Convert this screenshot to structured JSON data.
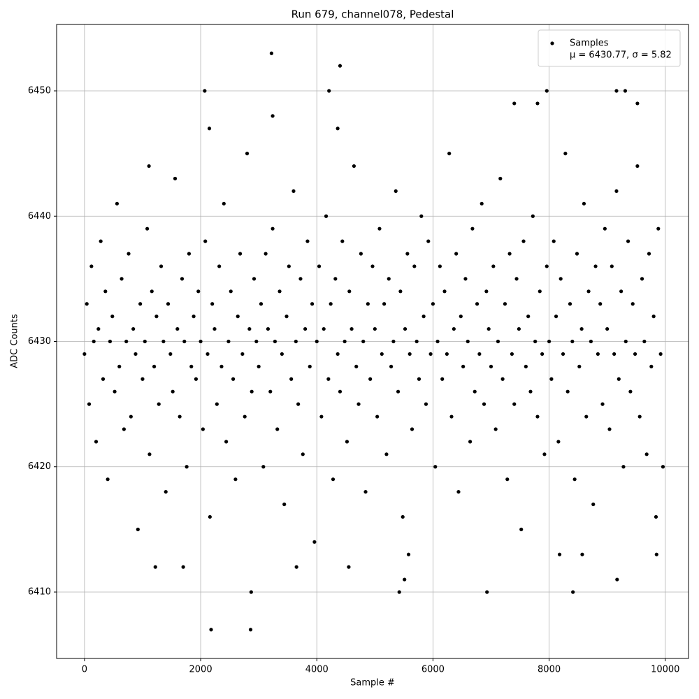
{
  "chart_data": {
    "type": "scatter",
    "title": "Run 679, channel078, Pedestal",
    "x_label": "Sample #",
    "y_label": "ADC Counts",
    "legend_note": "μ = 6430.77, σ = 5.82",
    "legend_position": "upper right",
    "grid": true,
    "xlim": [
      -480,
      10400
    ],
    "ylim": [
      6404.7,
      6455.3
    ],
    "xticks": [
      0,
      2000,
      4000,
      6000,
      8000,
      10000
    ],
    "yticks": [
      6410,
      6420,
      6430,
      6440,
      6450
    ],
    "series": [
      {
        "name": "Samples",
        "color": "#000000",
        "x": [
          0,
          40,
          80,
          120,
          160,
          200,
          240,
          280,
          320,
          360,
          400,
          440,
          480,
          520,
          560,
          600,
          640,
          680,
          720,
          760,
          800,
          840,
          880,
          920,
          960,
          1000,
          1040,
          1080,
          1120,
          1160,
          1200,
          1240,
          1280,
          1320,
          1360,
          1400,
          1440,
          1480,
          1520,
          1560,
          1600,
          1640,
          1680,
          1720,
          1760,
          1800,
          1840,
          1880,
          1920,
          1960,
          2000,
          2040,
          2080,
          2120,
          2160,
          2200,
          2240,
          2280,
          2320,
          2360,
          2400,
          2440,
          2480,
          2520,
          2560,
          2600,
          2640,
          2680,
          2720,
          2760,
          2800,
          2840,
          2880,
          2920,
          2960,
          3000,
          3040,
          3080,
          3120,
          3160,
          3200,
          3240,
          3280,
          3320,
          3360,
          3400,
          3440,
          3480,
          3520,
          3560,
          3600,
          3640,
          3680,
          3720,
          3760,
          3800,
          3840,
          3880,
          3920,
          3960,
          4000,
          4040,
          4080,
          4120,
          4160,
          4200,
          4240,
          4280,
          4320,
          4360,
          4400,
          4440,
          4480,
          4520,
          4560,
          4600,
          4640,
          4680,
          4720,
          4760,
          4800,
          4840,
          4880,
          4920,
          4960,
          5000,
          5040,
          5080,
          5120,
          5160,
          5200,
          5240,
          5280,
          5320,
          5360,
          5400,
          5440,
          5480,
          5520,
          5560,
          5600,
          5640,
          5680,
          5720,
          5760,
          5800,
          5840,
          5880,
          5920,
          5960,
          6000,
          6040,
          6080,
          6120,
          6160,
          6200,
          6240,
          6280,
          6320,
          6360,
          6400,
          6440,
          6480,
          6520,
          6560,
          6600,
          6640,
          6680,
          6720,
          6760,
          6800,
          6840,
          6880,
          6920,
          6960,
          7000,
          7040,
          7080,
          7120,
          7160,
          7200,
          7240,
          7280,
          7320,
          7360,
          7400,
          7440,
          7480,
          7520,
          7560,
          7600,
          7640,
          7680,
          7720,
          7760,
          7800,
          7840,
          7880,
          7920,
          7960,
          8000,
          8040,
          8080,
          8120,
          8160,
          8200,
          8240,
          8280,
          8320,
          8360,
          8400,
          8440,
          8480,
          8520,
          8560,
          8600,
          8640,
          8680,
          8720,
          8760,
          8800,
          8840,
          8880,
          8920,
          8960,
          9000,
          9040,
          9080,
          9120,
          9160,
          9200,
          9240,
          9280,
          9320,
          9360,
          9400,
          9440,
          9480,
          9520,
          9560,
          9600,
          9640,
          9680,
          9720,
          9760,
          9800,
          9840,
          9880,
          9920,
          9960,
          2070,
          3220,
          3240,
          4210,
          4400,
          2180,
          2860,
          2870,
          5420,
          6930,
          8410,
          9170,
          5510,
          4550,
          1220,
          1700,
          3650,
          7400,
          7800,
          7960,
          9160,
          9310,
          9520,
          2150,
          4360,
          1110,
          5580,
          8180,
          8570,
          9850
        ],
        "y": [
          6429,
          6433,
          6425,
          6436,
          6430,
          6422,
          6431,
          6438,
          6427,
          6434,
          6419,
          6430,
          6432,
          6426,
          6441,
          6428,
          6435,
          6423,
          6430,
          6437,
          6424,
          6431,
          6429,
          6415,
          6433,
          6427,
          6430,
          6439,
          6421,
          6434,
          6428,
          6432,
          6425,
          6436,
          6430,
          6418,
          6433,
          6429,
          6426,
          6443,
          6431,
          6424,
          6435,
          6430,
          6420,
          6437,
          6428,
          6432,
          6427,
          6434,
          6430,
          6423,
          6438,
          6429,
          6416,
          6433,
          6431,
          6425,
          6436,
          6428,
          6441,
          6422,
          6430,
          6434,
          6427,
          6419,
          6432,
          6437,
          6429,
          6424,
          6445,
          6431,
          6426,
          6435,
          6430,
          6428,
          6433,
          6420,
          6437,
          6431,
          6426,
          6439,
          6430,
          6423,
          6434,
          6429,
          6417,
          6432,
          6436,
          6427,
          6442,
          6430,
          6425,
          6435,
          6421,
          6431,
          6438,
          6428,
          6433,
          6414,
          6430,
          6436,
          6424,
          6431,
          6440,
          6427,
          6433,
          6419,
          6435,
          6429,
          6426,
          6438,
          6430,
          6422,
          6434,
          6431,
          6444,
          6428,
          6425,
          6437,
          6430,
          6418,
          6433,
          6427,
          6436,
          6431,
          6424,
          6439,
          6429,
          6433,
          6421,
          6435,
          6428,
          6430,
          6442,
          6426,
          6434,
          6416,
          6431,
          6437,
          6429,
          6423,
          6436,
          6430,
          6427,
          6440,
          6432,
          6425,
          6438,
          6429,
          6433,
          6420,
          6430,
          6436,
          6427,
          6434,
          6429,
          6445,
          6424,
          6431,
          6437,
          6418,
          6432,
          6428,
          6435,
          6430,
          6422,
          6439,
          6426,
          6433,
          6429,
          6441,
          6425,
          6434,
          6431,
          6428,
          6436,
          6423,
          6430,
          6443,
          6427,
          6433,
          6419,
          6437,
          6429,
          6425,
          6435,
          6431,
          6415,
          6438,
          6428,
          6432,
          6426,
          6440,
          6430,
          6424,
          6434,
          6429,
          6421,
          6436,
          6430,
          6427,
          6438,
          6432,
          6422,
          6435,
          6429,
          6445,
          6426,
          6433,
          6430,
          6419,
          6437,
          6428,
          6431,
          6441,
          6424,
          6434,
          6430,
          6417,
          6436,
          6429,
          6433,
          6425,
          6439,
          6431,
          6423,
          6436,
          6429,
          6442,
          6427,
          6434,
          6420,
          6430,
          6438,
          6426,
          6433,
          6429,
          6444,
          6424,
          6435,
          6430,
          6421,
          6437,
          6428,
          6432,
          6416,
          6439,
          6429,
          6420,
          6450,
          6453,
          6448,
          6450,
          6452,
          6407,
          6407,
          6410,
          6410,
          6410,
          6410,
          6411,
          6411,
          6412,
          6412,
          6412,
          6412,
          6449,
          6449,
          6450,
          6450,
          6450,
          6449,
          6447,
          6447,
          6444,
          6413,
          6413,
          6413,
          6413
        ]
      }
    ]
  }
}
